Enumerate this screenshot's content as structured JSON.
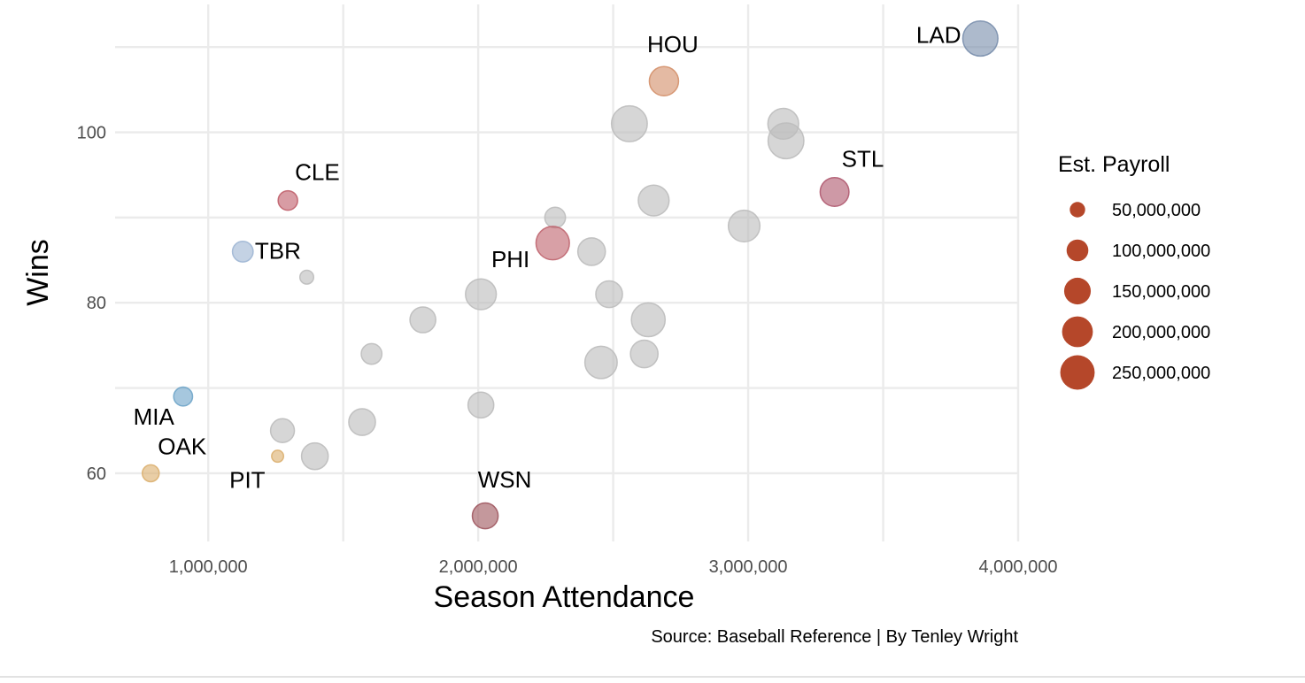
{
  "chart_data": {
    "type": "scatter",
    "xlabel": "Season Attendance",
    "ylabel": "Wins",
    "xlim": [
      655000,
      4000000
    ],
    "ylim": [
      52,
      115
    ],
    "x_ticks": [
      1000000,
      2000000,
      3000000,
      4000000
    ],
    "x_tick_labels": [
      "1,000,000",
      "2,000,000",
      "3,000,000",
      "4,000,000"
    ],
    "y_ticks": [
      60,
      80,
      100
    ],
    "y_tick_labels": [
      "60",
      "80",
      "100"
    ],
    "grid": true,
    "caption": "Source: Baseball Reference | By Tenley Wright",
    "size_legend": {
      "title": "Est. Payroll",
      "position": "right",
      "color": "#b5472a",
      "entries": [
        {
          "value": 50000000,
          "label": "50,000,000"
        },
        {
          "value": 100000000,
          "label": "100,000,000"
        },
        {
          "value": 150000000,
          "label": "150,000,000"
        },
        {
          "value": 200000000,
          "label": "200,000,000"
        },
        {
          "value": 250000000,
          "label": "250,000,000"
        }
      ]
    },
    "label_offsets_note": "labels placed near highlighted points",
    "points": [
      {
        "team": "LAD",
        "attendance": 3860000,
        "wins": 111,
        "payroll": 260000000,
        "color": "#7a8fad",
        "labeled": true,
        "label_pos": "left"
      },
      {
        "team": "HOU",
        "attendance": 2688000,
        "wins": 106,
        "payroll": 180000000,
        "color": "#d4906a",
        "labeled": true,
        "label_pos": "top"
      },
      {
        "team": "STL",
        "attendance": 3320000,
        "wins": 93,
        "payroll": 175000000,
        "color": "#b05a70",
        "labeled": true,
        "label_pos": "top-right"
      },
      {
        "team": "CLE",
        "attendance": 1295000,
        "wins": 92,
        "payroll": 80000000,
        "color": "#c0606c",
        "labeled": true,
        "label_pos": "top-right"
      },
      {
        "team": "TBR",
        "attendance": 1128000,
        "wins": 86,
        "payroll": 90000000,
        "color": "#9fb6d4",
        "labeled": true,
        "label_pos": "right"
      },
      {
        "team": "PHI",
        "attendance": 2276000,
        "wins": 87,
        "payroll": 235000000,
        "color": "#c06670",
        "labeled": true,
        "label_pos": "bottom-left"
      },
      {
        "team": "MIA",
        "attendance": 907000,
        "wins": 69,
        "payroll": 75000000,
        "color": "#6fa5c9",
        "labeled": true,
        "label_pos": "bottom-left"
      },
      {
        "team": "OAK",
        "attendance": 787000,
        "wins": 60,
        "payroll": 60000000,
        "color": "#dcb070",
        "labeled": true,
        "label_pos": "top-right"
      },
      {
        "team": "PIT",
        "attendance": 1257000,
        "wins": 62,
        "payroll": 30000000,
        "color": "#dcb070",
        "labeled": true,
        "label_pos": "bottom-left"
      },
      {
        "team": "WSN",
        "attendance": 2026000,
        "wins": 55,
        "payroll": 140000000,
        "color": "#a05860",
        "labeled": true,
        "label_pos": "top"
      },
      {
        "team": "",
        "attendance": 2560000,
        "wins": 101,
        "payroll": 270000000,
        "color": "#bdbdbd",
        "labeled": false
      },
      {
        "team": "",
        "attendance": 3130000,
        "wins": 101,
        "payroll": 200000000,
        "color": "#bdbdbd",
        "labeled": false
      },
      {
        "team": "",
        "attendance": 3140000,
        "wins": 99,
        "payroll": 270000000,
        "color": "#bdbdbd",
        "labeled": false
      },
      {
        "team": "",
        "attendance": 2650000,
        "wins": 92,
        "payroll": 200000000,
        "color": "#bdbdbd",
        "labeled": false
      },
      {
        "team": "",
        "attendance": 2285000,
        "wins": 90,
        "payroll": 90000000,
        "color": "#bdbdbd",
        "labeled": false
      },
      {
        "team": "",
        "attendance": 2985000,
        "wins": 89,
        "payroll": 210000000,
        "color": "#bdbdbd",
        "labeled": false
      },
      {
        "team": "",
        "attendance": 2420000,
        "wins": 86,
        "payroll": 160000000,
        "color": "#bdbdbd",
        "labeled": false
      },
      {
        "team": "",
        "attendance": 1365000,
        "wins": 83,
        "payroll": 40000000,
        "color": "#bdbdbd",
        "labeled": false
      },
      {
        "team": "",
        "attendance": 2010000,
        "wins": 81,
        "payroll": 200000000,
        "color": "#bdbdbd",
        "labeled": false
      },
      {
        "team": "",
        "attendance": 2485000,
        "wins": 81,
        "payroll": 150000000,
        "color": "#bdbdbd",
        "labeled": false
      },
      {
        "team": "",
        "attendance": 1795000,
        "wins": 78,
        "payroll": 140000000,
        "color": "#bdbdbd",
        "labeled": false
      },
      {
        "team": "",
        "attendance": 2630000,
        "wins": 78,
        "payroll": 240000000,
        "color": "#bdbdbd",
        "labeled": false
      },
      {
        "team": "",
        "attendance": 1605000,
        "wins": 74,
        "payroll": 90000000,
        "color": "#bdbdbd",
        "labeled": false
      },
      {
        "team": "",
        "attendance": 2615000,
        "wins": 74,
        "payroll": 160000000,
        "color": "#bdbdbd",
        "labeled": false
      },
      {
        "team": "",
        "attendance": 2455000,
        "wins": 73,
        "payroll": 220000000,
        "color": "#bdbdbd",
        "labeled": false
      },
      {
        "team": "",
        "attendance": 2010000,
        "wins": 68,
        "payroll": 140000000,
        "color": "#bdbdbd",
        "labeled": false
      },
      {
        "team": "",
        "attendance": 1570000,
        "wins": 66,
        "payroll": 150000000,
        "color": "#bdbdbd",
        "labeled": false
      },
      {
        "team": "",
        "attendance": 1275000,
        "wins": 65,
        "payroll": 120000000,
        "color": "#bdbdbd",
        "labeled": false
      },
      {
        "team": "",
        "attendance": 1395000,
        "wins": 62,
        "payroll": 150000000,
        "color": "#bdbdbd",
        "labeled": false
      }
    ]
  }
}
